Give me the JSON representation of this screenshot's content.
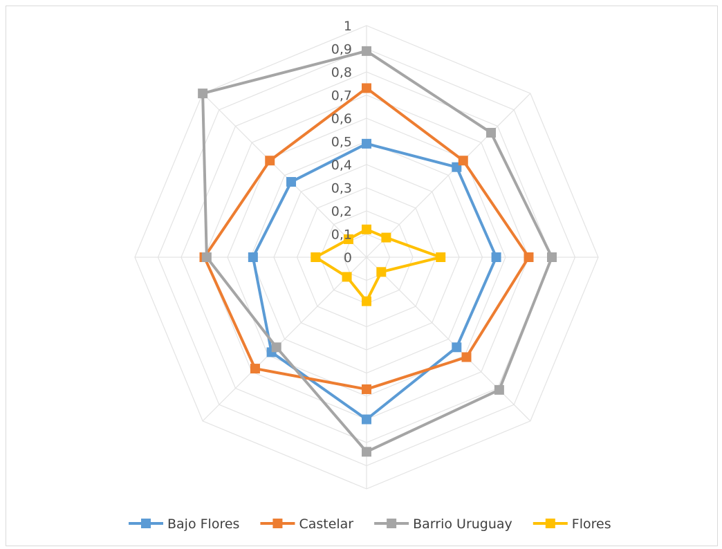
{
  "chart_data": {
    "type": "radar",
    "title": "",
    "categories": [
      "",
      "",
      "",
      "",
      "",
      "",
      "",
      ""
    ],
    "rlim": [
      0,
      1
    ],
    "ticks": [
      "0",
      "0,1",
      "0,2",
      "0,3",
      "0,4",
      "0,5",
      "0,6",
      "0,7",
      "0,8",
      "0,9",
      "1"
    ],
    "grid": true,
    "legend_position": "bottom",
    "series": [
      {
        "name": "Bajo Flores",
        "color": "#5b9bd5",
        "values": [
          0.49,
          0.55,
          0.56,
          0.55,
          0.7,
          0.58,
          0.49,
          0.46
        ]
      },
      {
        "name": "Castelar",
        "color": "#ed7d31",
        "values": [
          0.73,
          0.59,
          0.7,
          0.61,
          0.57,
          0.68,
          0.7,
          0.59
        ]
      },
      {
        "name": "Barrio Uruguay",
        "color": "#a5a5a5",
        "values": [
          0.89,
          0.76,
          0.8,
          0.81,
          0.84,
          0.55,
          0.69,
          1.0
        ]
      },
      {
        "name": "Flores",
        "color": "#ffc000",
        "values": [
          0.12,
          0.12,
          0.32,
          0.09,
          0.19,
          0.12,
          0.22,
          0.11
        ]
      }
    ]
  }
}
